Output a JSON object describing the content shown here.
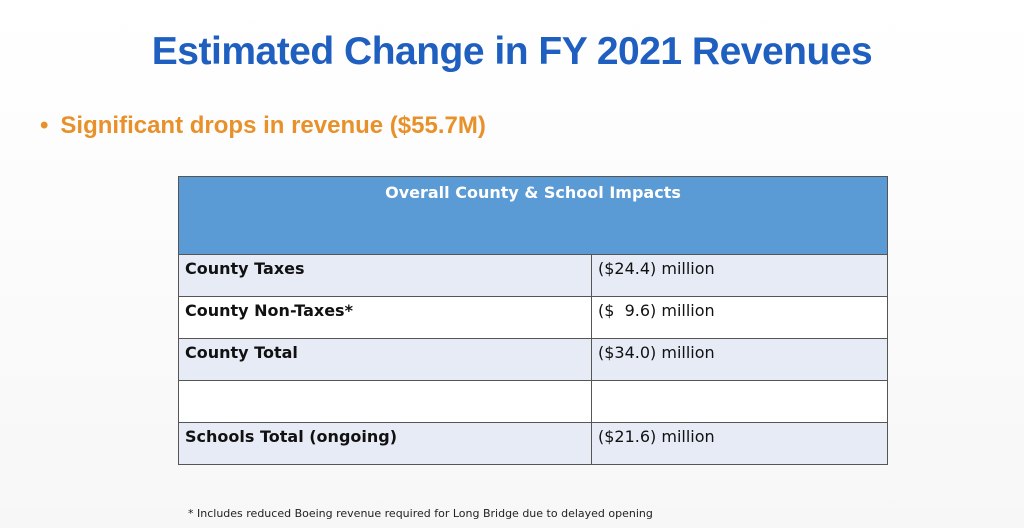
{
  "slide": {
    "title": "Estimated Change in FY 2021 Revenues",
    "bullet": {
      "marker": "•",
      "text": "Significant drops in revenue ($55.7M)"
    }
  },
  "table": {
    "header": "Overall County & School Impacts",
    "rows": [
      {
        "label": "County Taxes",
        "value": "($24.4) million"
      },
      {
        "label": "County Non-Taxes*",
        "value": "($  9.6) million"
      },
      {
        "label": "County Total",
        "value": "($34.0) million"
      },
      {
        "label": "",
        "value": ""
      },
      {
        "label": "Schools Total (ongoing)",
        "value": "($21.6) million"
      }
    ]
  },
  "footnote": "* Includes reduced Boeing revenue required for Long Bridge due to delayed opening",
  "colors": {
    "title": "#1f5fbf",
    "bullet": "#e8912a",
    "header_bg": "#5b9bd5",
    "shaded_row": "#e6ebf5"
  }
}
